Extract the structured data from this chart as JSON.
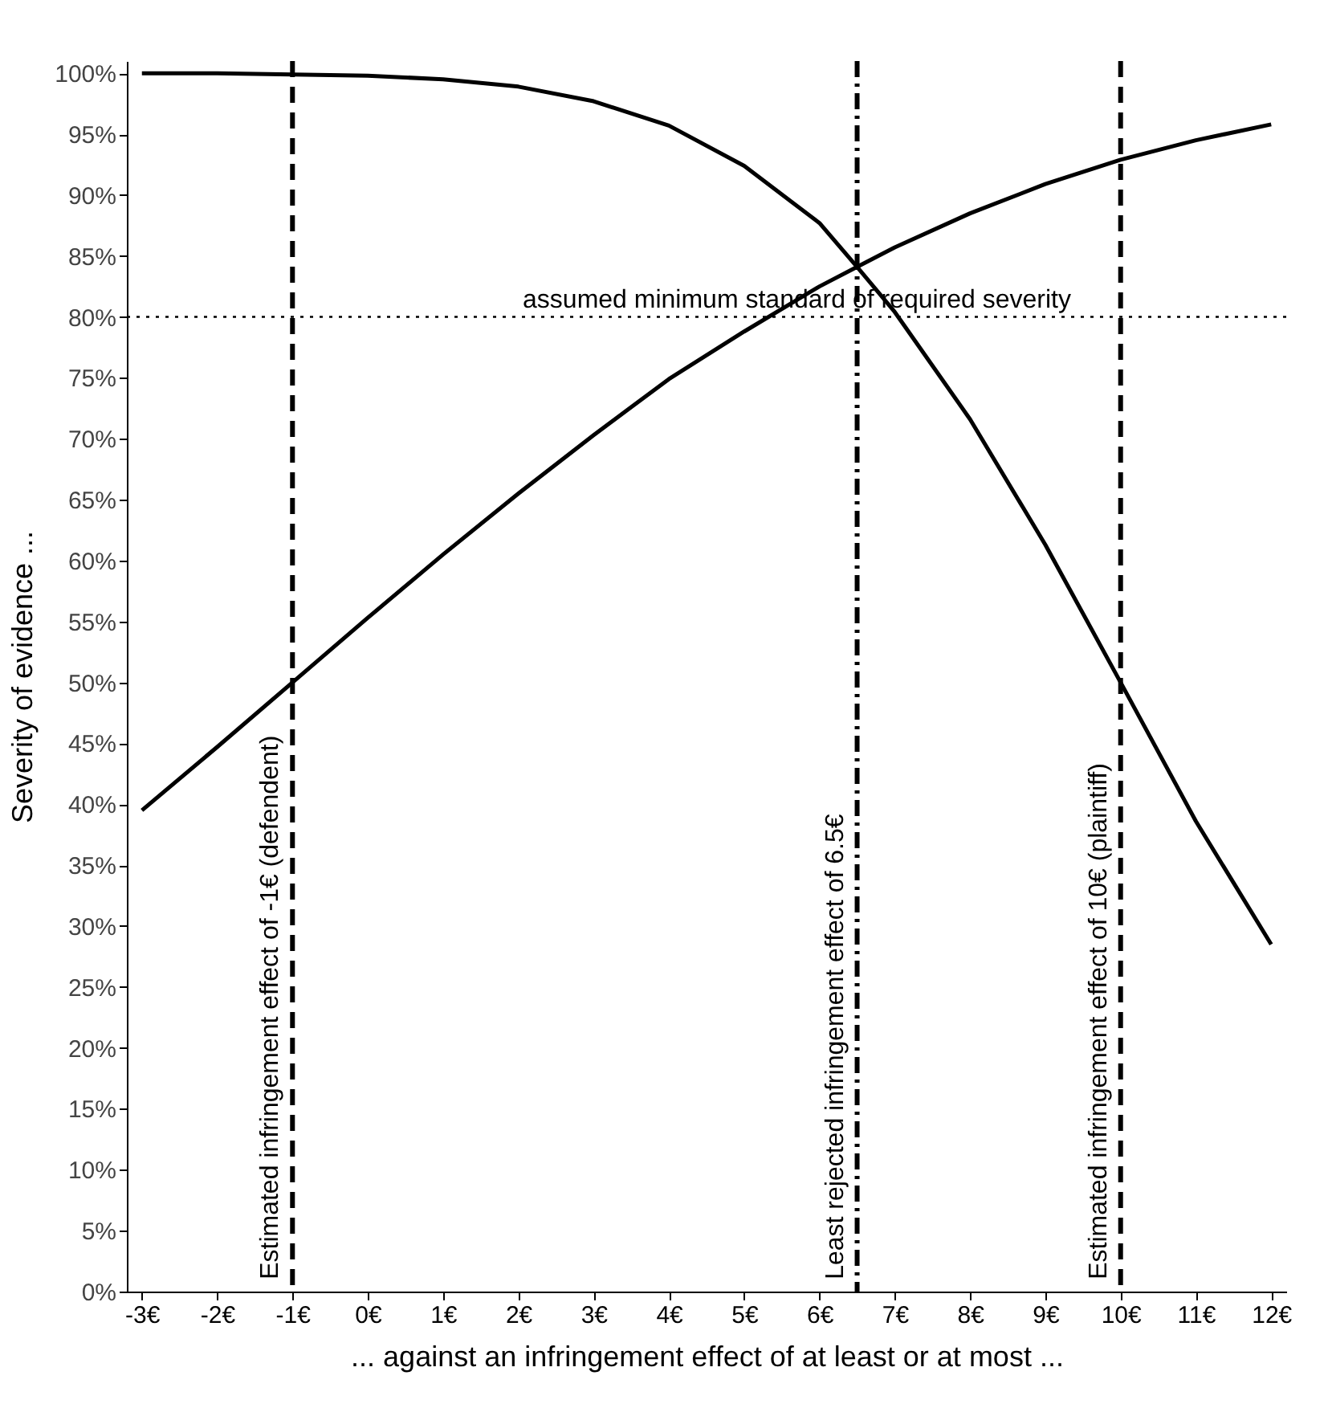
{
  "chart_data": {
    "type": "line",
    "xlabel": "... against an infringement effect of at least or at most ...",
    "ylabel": "Severity of evidence ...",
    "x": [
      -3,
      -2,
      -1,
      0,
      1,
      2,
      3,
      4,
      5,
      6,
      6.5,
      7,
      8,
      9,
      10,
      11,
      12
    ],
    "series": [
      {
        "color": "#000000",
        "values": [
          39.5,
          44.7,
          50,
          55.3,
          60.5,
          65.5,
          70.3,
          74.9,
          78.8,
          82.5,
          84.1,
          85.7,
          88.5,
          90.9,
          92.9,
          94.5,
          95.8
        ]
      },
      {
        "color": "#000000",
        "values": [
          100,
          100,
          99.9,
          99.8,
          99.5,
          98.9,
          97.7,
          95.7,
          92.4,
          87.7,
          84.1,
          80.4,
          71.6,
          61.3,
          50,
          38.6,
          28.5
        ]
      }
    ],
    "xlim": [
      -3.2,
      12.2
    ],
    "ylim": [
      0,
      101
    ],
    "xticks": [
      {
        "value": -3,
        "label": "-3€"
      },
      {
        "value": -2,
        "label": "-2€"
      },
      {
        "value": -1,
        "label": "-1€"
      },
      {
        "value": 0,
        "label": "0€"
      },
      {
        "value": 1,
        "label": "1€"
      },
      {
        "value": 2,
        "label": "2€"
      },
      {
        "value": 3,
        "label": "3€"
      },
      {
        "value": 4,
        "label": "4€"
      },
      {
        "value": 5,
        "label": "5€"
      },
      {
        "value": 6,
        "label": "6€"
      },
      {
        "value": 7,
        "label": "7€"
      },
      {
        "value": 8,
        "label": "8€"
      },
      {
        "value": 9,
        "label": "9€"
      },
      {
        "value": 10,
        "label": "10€"
      },
      {
        "value": 11,
        "label": "11€"
      },
      {
        "value": 12,
        "label": "12€"
      }
    ],
    "yticks": [
      {
        "value": 0,
        "label": "0%"
      },
      {
        "value": 5,
        "label": "5%"
      },
      {
        "value": 10,
        "label": "10%"
      },
      {
        "value": 15,
        "label": "15%"
      },
      {
        "value": 20,
        "label": "20%"
      },
      {
        "value": 25,
        "label": "25%"
      },
      {
        "value": 30,
        "label": "30%"
      },
      {
        "value": 35,
        "label": "35%"
      },
      {
        "value": 40,
        "label": "40%"
      },
      {
        "value": 45,
        "label": "45%"
      },
      {
        "value": 50,
        "label": "50%"
      },
      {
        "value": 55,
        "label": "55%"
      },
      {
        "value": 60,
        "label": "60%"
      },
      {
        "value": 65,
        "label": "65%"
      },
      {
        "value": 70,
        "label": "70%"
      },
      {
        "value": 75,
        "label": "75%"
      },
      {
        "value": 80,
        "label": "80%"
      },
      {
        "value": 85,
        "label": "85%"
      },
      {
        "value": 90,
        "label": "90%"
      },
      {
        "value": 95,
        "label": "95%"
      },
      {
        "value": 100,
        "label": "100%"
      }
    ],
    "ref_lines": [
      {
        "axis": "x",
        "value": -1,
        "label": "Estimated infringement effect of -1€ (defendent)",
        "line_style": "dashed",
        "color": "#000000"
      },
      {
        "axis": "x",
        "value": 6.5,
        "label": "Least rejected infringement effect of 6.5€",
        "line_style": "dashdot",
        "color": "#000000"
      },
      {
        "axis": "x",
        "value": 10,
        "label": "Estimated infringement effect of 10€ (plaintiff)",
        "line_style": "dashed",
        "color": "#000000"
      },
      {
        "axis": "y",
        "value": 80,
        "label": "assumed minimum standard of required severity",
        "line_style": "dotted",
        "color": "#000000"
      }
    ],
    "grid": false,
    "legend": false,
    "marker": "none",
    "line_style": "solid"
  }
}
